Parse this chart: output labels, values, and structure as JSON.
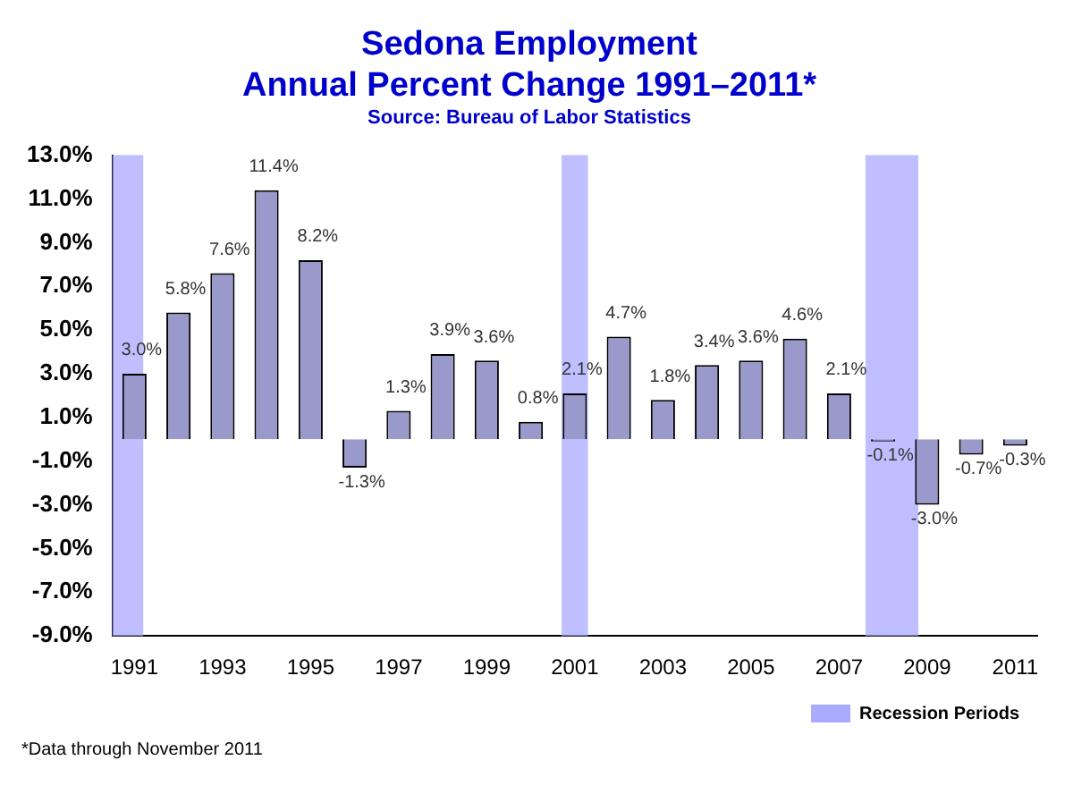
{
  "chart_data": {
    "type": "bar",
    "title": "Sedona Employment",
    "subtitle": "Annual Percent Change 1991–2011*",
    "annotations": [
      "Source: Bureau of Labor Statistics",
      "*Data through November 2011"
    ],
    "x": [
      1991,
      1992,
      1993,
      1994,
      1995,
      1996,
      1997,
      1998,
      1999,
      2000,
      2001,
      2002,
      2003,
      2004,
      2005,
      2006,
      2007,
      2008,
      2009,
      2010,
      2011
    ],
    "values": [
      3.0,
      5.8,
      7.6,
      11.4,
      8.2,
      -1.3,
      1.3,
      3.9,
      3.6,
      0.8,
      2.1,
      4.7,
      1.8,
      3.4,
      3.6,
      4.6,
      2.1,
      -0.1,
      -3.0,
      -0.7,
      -0.3
    ],
    "value_labels": [
      "3.0%",
      "5.8%",
      "7.6%",
      "11.4%",
      "8.2%",
      "-1.3%",
      "1.3%",
      "3.9%",
      "3.6%",
      "0.8%",
      "2.1%",
      "4.7%",
      "1.8%",
      "3.4%",
      "3.6%",
      "4.6%",
      "2.1%",
      "-0.1%",
      "-3.0%",
      "-0.7%",
      "-0.3%"
    ],
    "color": "#9999cc",
    "xlim": [
      1990.5,
      2011.5
    ],
    "xticks": [
      1991,
      1993,
      1995,
      1997,
      1999,
      2001,
      2003,
      2005,
      2007,
      2009,
      2011
    ],
    "ylim": [
      -9,
      13
    ],
    "yticks": [
      {
        "value": -9,
        "label": "-9.0%"
      },
      {
        "value": -7,
        "label": "-7.0%"
      },
      {
        "value": -5,
        "label": "-5.0%"
      },
      {
        "value": -3,
        "label": "-3.0%"
      },
      {
        "value": -1,
        "label": "-1.0%"
      },
      {
        "value": 1,
        "label": "1.0%"
      },
      {
        "value": 3,
        "label": "3.0%"
      },
      {
        "value": 5,
        "label": "5.0%"
      },
      {
        "value": 7,
        "label": "7.0%"
      },
      {
        "value": 9,
        "label": "9.0%"
      },
      {
        "value": 11,
        "label": "11.0%"
      },
      {
        "value": 13,
        "label": "13.0%"
      }
    ],
    "bands": [
      {
        "axis": "x",
        "from": 1990.5,
        "to": 1991.2,
        "label": "Recession Periods",
        "color": "#aaaaff"
      },
      {
        "axis": "x",
        "from": 2000.7,
        "to": 2001.3,
        "color": "#aaaaff"
      },
      {
        "axis": "x",
        "from": 2007.6,
        "to": 2008.8,
        "color": "#aaaaff"
      }
    ],
    "grid": false,
    "legend": "bottom right"
  }
}
